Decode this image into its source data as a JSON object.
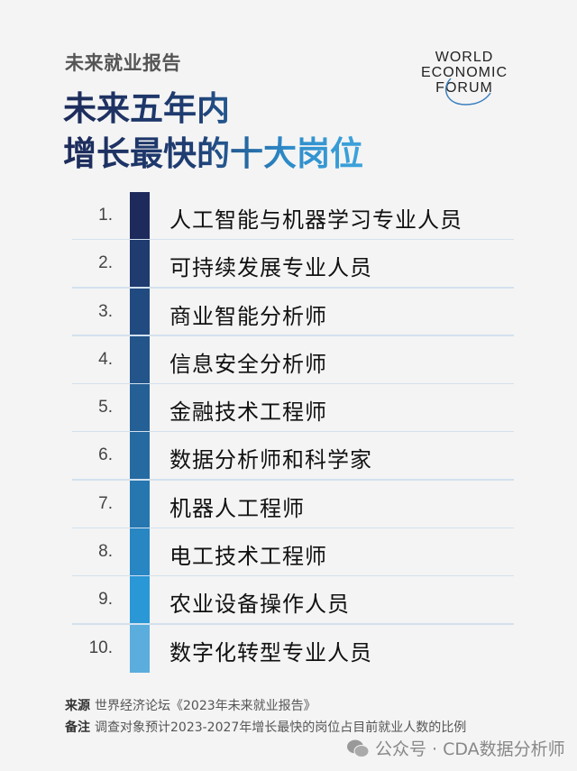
{
  "header": {
    "kicker": "未来就业报告",
    "title_line1": "未来五年内",
    "title_line2": "增长最快的十大岗位",
    "logo_lines": [
      "WORLD",
      "ECONOMIC",
      "FORUM"
    ]
  },
  "jobs": [
    {
      "rank": "1.",
      "title": "人工智能与机器学习专业人员",
      "color": "#1e2a5b"
    },
    {
      "rank": "2.",
      "title": "可持续发展专业人员",
      "color": "#1f3b6f"
    },
    {
      "rank": "3.",
      "title": "商业智能分析师",
      "color": "#214a80"
    },
    {
      "rank": "4.",
      "title": "信息安全分析师",
      "color": "#23548a"
    },
    {
      "rank": "5.",
      "title": "金融技术工程师",
      "color": "#245f95"
    },
    {
      "rank": "6.",
      "title": "数据分析师和科学家",
      "color": "#256ba1"
    },
    {
      "rank": "7.",
      "title": "机器人工程师",
      "color": "#2677b0"
    },
    {
      "rank": "8.",
      "title": "电工技术工程师",
      "color": "#2886c3"
    },
    {
      "rank": "9.",
      "title": "农业设备操作人员",
      "color": "#2a97d6"
    },
    {
      "rank": "10.",
      "title": "数字化转型专业人员",
      "color": "#5badde"
    }
  ],
  "footer": {
    "source_label": "来源",
    "source_text": "世界经济论坛《2023年未来就业报告》",
    "note_label": "备注",
    "note_text": "调查对象预计2023-2027年增长最快的岗位占目前就业人数的比例",
    "watermark": "公众号 · CDA数据分析师"
  }
}
